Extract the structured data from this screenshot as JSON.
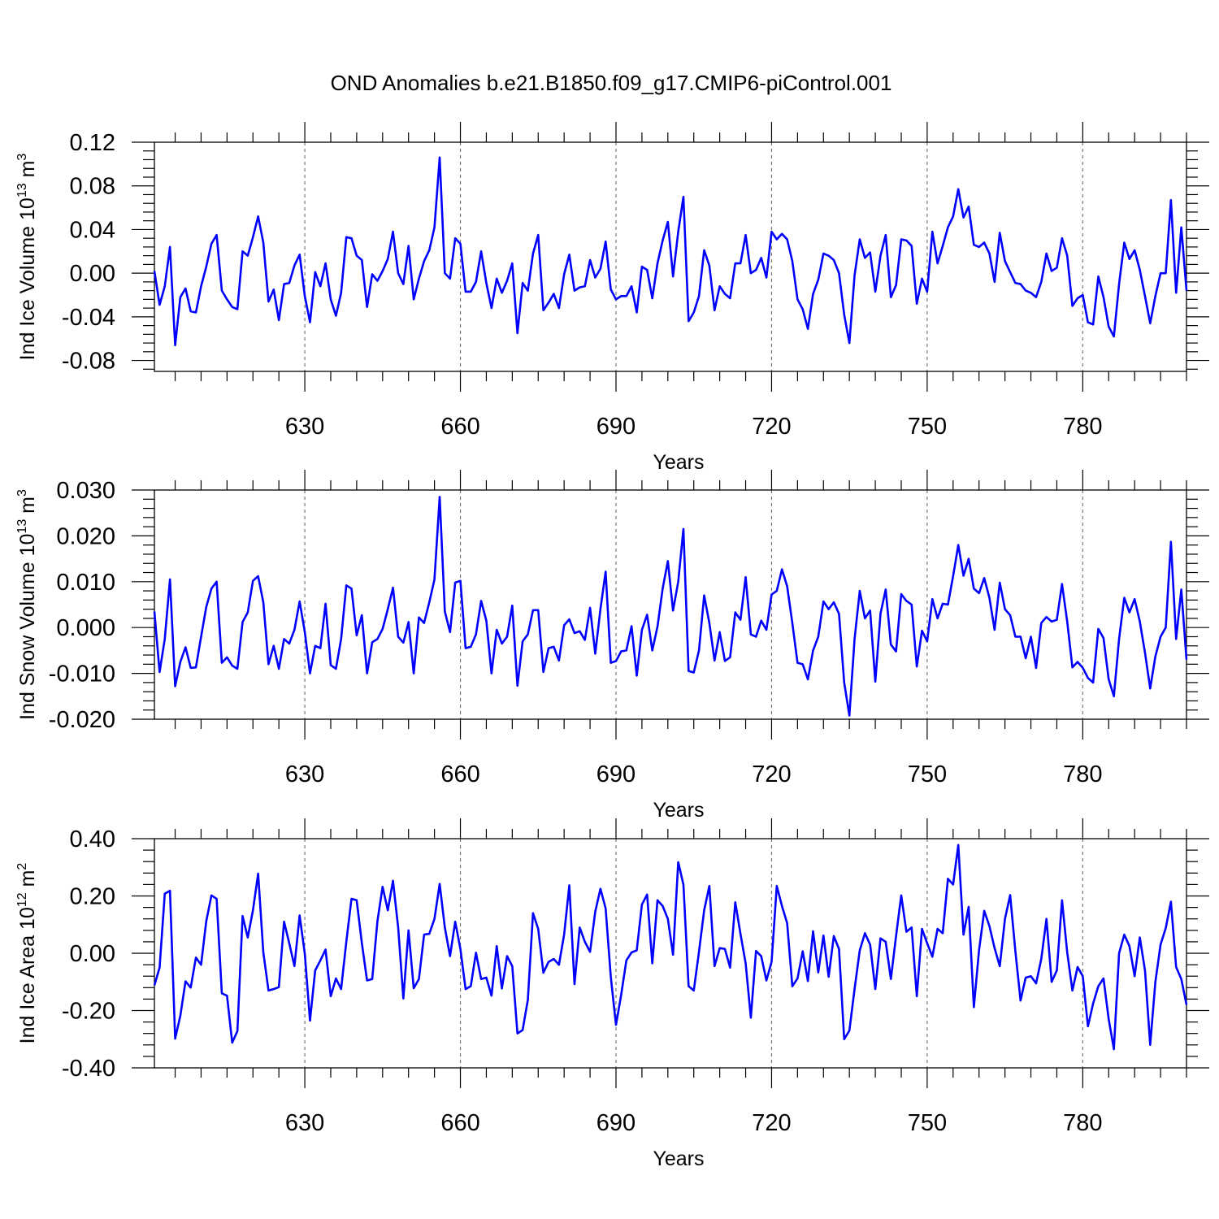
{
  "title": "OND Anomalies b.e21.B1850.f09_g17.CMIP6-piControl.001",
  "chart_data": [
    {
      "type": "line",
      "xlabel": "Years",
      "ylabel_main": "Ind Ice Volume 10",
      "ylabel_exp": "13",
      "ylabel_unit": " m",
      "ylabel_unit_exp": "3",
      "xlim": [
        601,
        800
      ],
      "ylim": [
        -0.09,
        0.12
      ],
      "xticks": [
        630,
        660,
        690,
        720,
        750,
        780
      ],
      "yticks": [
        -0.08,
        -0.04,
        0.0,
        0.04,
        0.08,
        0.12
      ],
      "ytick_labels": [
        "-0.08",
        "-0.04",
        "0.00",
        "0.04",
        "0.08",
        "0.12"
      ],
      "grid": "dashed vertical lines at x ticks",
      "color": "#0000ff",
      "x_start": 601,
      "values": [
        0.002,
        -0.029,
        -0.012,
        0.024,
        -0.066,
        -0.022,
        -0.014,
        -0.035,
        -0.036,
        -0.012,
        0.006,
        0.027,
        0.035,
        -0.016,
        -0.024,
        -0.031,
        -0.033,
        0.02,
        0.016,
        0.033,
        0.052,
        0.028,
        -0.026,
        -0.015,
        -0.043,
        -0.01,
        -0.009,
        0.007,
        0.017,
        -0.021,
        -0.045,
        0.001,
        -0.012,
        0.009,
        -0.024,
        -0.039,
        -0.018,
        0.033,
        0.032,
        0.016,
        0.012,
        -0.031,
        -0.001,
        -0.007,
        0.002,
        0.013,
        0.038,
        0.0,
        -0.01,
        0.025,
        -0.024,
        -0.005,
        0.011,
        0.021,
        0.042,
        0.106,
        0.0,
        -0.005,
        0.032,
        0.027,
        -0.017,
        -0.017,
        -0.008,
        0.02,
        -0.009,
        -0.032,
        -0.005,
        -0.018,
        -0.007,
        0.009,
        -0.055,
        -0.009,
        -0.016,
        0.018,
        0.035,
        -0.034,
        -0.027,
        -0.019,
        -0.032,
        -0.001,
        0.017,
        -0.016,
        -0.013,
        -0.012,
        0.012,
        -0.004,
        0.004,
        0.029,
        -0.015,
        -0.024,
        -0.021,
        -0.021,
        -0.012,
        -0.036,
        0.006,
        0.003,
        -0.023,
        0.009,
        0.03,
        0.047,
        -0.003,
        0.038,
        0.07,
        -0.044,
        -0.036,
        -0.021,
        0.021,
        0.007,
        -0.034,
        -0.012,
        -0.019,
        -0.023,
        0.009,
        0.009,
        0.035,
        0.0,
        0.003,
        0.014,
        -0.004,
        0.038,
        0.031,
        0.036,
        0.031,
        0.011,
        -0.024,
        -0.033,
        -0.051,
        -0.019,
        -0.006,
        0.018,
        0.016,
        0.012,
        0.0,
        -0.038,
        -0.064,
        -0.002,
        0.031,
        0.014,
        0.019,
        -0.017,
        0.016,
        0.035,
        -0.022,
        -0.011,
        0.031,
        0.03,
        0.025,
        -0.028,
        -0.005,
        -0.017,
        0.038,
        0.009,
        0.025,
        0.042,
        0.052,
        0.077,
        0.051,
        0.061,
        0.026,
        0.024,
        0.028,
        0.018,
        -0.008,
        0.037,
        0.011,
        0.001,
        -0.009,
        -0.01,
        -0.016,
        -0.018,
        -0.022,
        -0.008,
        0.018,
        0.002,
        0.005,
        0.032,
        0.016,
        -0.03,
        -0.023,
        -0.02,
        -0.045,
        -0.047,
        -0.003,
        -0.022,
        -0.049,
        -0.058,
        -0.01,
        0.028,
        0.013,
        0.021,
        0.003,
        -0.021,
        -0.046,
        -0.021,
        0.0,
        0.0,
        0.067,
        -0.018,
        0.042,
        -0.016
      ]
    },
    {
      "type": "line",
      "xlabel": "Years",
      "ylabel_main": "Ind Snow Volume 10",
      "ylabel_exp": "13",
      "ylabel_unit": " m",
      "ylabel_unit_exp": "3",
      "xlim": [
        601,
        800
      ],
      "ylim": [
        -0.02,
        0.03
      ],
      "xticks": [
        630,
        660,
        690,
        720,
        750,
        780
      ],
      "yticks": [
        -0.02,
        -0.01,
        0.0,
        0.01,
        0.02,
        0.03
      ],
      "ytick_labels": [
        "-0.020",
        "-0.010",
        "0.000",
        "0.010",
        "0.020",
        "0.030"
      ],
      "grid": "dashed vertical lines at x ticks",
      "color": "#0000ff",
      "x_start": 601,
      "values": [
        0.0035,
        -0.0097,
        -0.0025,
        0.0105,
        -0.0128,
        -0.0075,
        -0.0043,
        -0.0088,
        -0.0087,
        -0.002,
        0.0045,
        0.0085,
        0.01,
        -0.0077,
        -0.0065,
        -0.0083,
        -0.009,
        0.0012,
        0.0033,
        0.0102,
        0.0112,
        0.0055,
        -0.008,
        -0.004,
        -0.009,
        -0.0025,
        -0.0035,
        -0.0005,
        0.0057,
        -0.001,
        -0.01,
        -0.004,
        -0.0045,
        0.0052,
        -0.0082,
        -0.009,
        -0.0025,
        0.0092,
        0.0085,
        -0.0017,
        0.0027,
        -0.01,
        -0.0032,
        -0.0025,
        -0.0003,
        0.004,
        0.0087,
        -0.002,
        -0.0033,
        0.0012,
        -0.01,
        0.0022,
        0.001,
        0.0055,
        0.0105,
        0.0285,
        0.0035,
        -0.001,
        0.0098,
        0.0102,
        -0.0045,
        -0.0042,
        -0.0015,
        0.0058,
        0.0015,
        -0.01,
        -0.0005,
        -0.0035,
        -0.002,
        0.0048,
        -0.0127,
        -0.003,
        -0.0015,
        0.0038,
        0.0038,
        -0.0097,
        -0.0045,
        -0.0042,
        -0.0072,
        0.0005,
        0.0018,
        -0.0012,
        -0.0008,
        -0.0027,
        0.0043,
        -0.0057,
        0.004,
        0.0122,
        -0.0077,
        -0.0073,
        -0.0052,
        -0.005,
        0.0003,
        -0.0105,
        -0.0005,
        0.0028,
        -0.005,
        0.0002,
        0.0085,
        0.0145,
        0.0037,
        0.01,
        0.0215,
        -0.0095,
        -0.0098,
        -0.005,
        0.007,
        0.001,
        -0.0072,
        -0.001,
        -0.0073,
        -0.0065,
        0.0033,
        0.0017,
        0.011,
        -0.0015,
        -0.002,
        0.0015,
        -0.0005,
        0.0072,
        0.008,
        0.0127,
        0.009,
        0.001,
        -0.0077,
        -0.008,
        -0.0113,
        -0.005,
        -0.002,
        0.0057,
        0.004,
        0.0055,
        0.003,
        -0.012,
        -0.0192,
        -0.0025,
        0.008,
        0.002,
        0.0037,
        -0.0118,
        0.003,
        0.0083,
        -0.0037,
        -0.0052,
        0.0073,
        0.0058,
        0.005,
        -0.0085,
        -0.0007,
        -0.003,
        0.0062,
        0.002,
        0.0052,
        0.005,
        0.0112,
        0.018,
        0.0113,
        0.015,
        0.0085,
        0.0075,
        0.0108,
        0.0065,
        -0.0005,
        0.0098,
        0.004,
        0.0027,
        -0.002,
        -0.002,
        -0.0067,
        -0.002,
        -0.0088,
        0.001,
        0.0023,
        0.0013,
        0.0017,
        0.0095,
        0.0013,
        -0.0087,
        -0.0075,
        -0.0088,
        -0.011,
        -0.012,
        -0.0003,
        -0.0023,
        -0.0113,
        -0.015,
        -0.0025,
        0.0065,
        0.0033,
        0.0062,
        0.0013,
        -0.0055,
        -0.0133,
        -0.0063,
        -0.002,
        0.0,
        0.0187,
        -0.0025,
        0.0083,
        -0.007
      ]
    },
    {
      "type": "line",
      "xlabel": "Years",
      "ylabel_main": "Ind Ice Area 10",
      "ylabel_exp": "12",
      "ylabel_unit": " m",
      "ylabel_unit_exp": "2",
      "xlim": [
        601,
        800
      ],
      "ylim": [
        -0.4,
        0.4
      ],
      "xticks": [
        630,
        660,
        690,
        720,
        750,
        780
      ],
      "yticks": [
        -0.4,
        -0.2,
        0.0,
        0.2,
        0.4
      ],
      "ytick_labels": [
        "-0.40",
        "-0.20",
        "0.00",
        "0.20",
        "0.40"
      ],
      "grid": "dashed vertical lines at x ticks",
      "color": "#0000ff",
      "x_start": 601,
      "values": [
        -0.112,
        -0.05,
        0.208,
        0.218,
        -0.298,
        -0.218,
        -0.098,
        -0.12,
        -0.015,
        -0.04,
        0.112,
        0.202,
        0.19,
        -0.14,
        -0.148,
        -0.312,
        -0.272,
        0.13,
        0.055,
        0.15,
        0.278,
        0.003,
        -0.13,
        -0.125,
        -0.118,
        0.11,
        0.035,
        -0.045,
        0.132,
        -0.002,
        -0.235,
        -0.06,
        -0.025,
        0.013,
        -0.15,
        -0.088,
        -0.125,
        0.04,
        0.19,
        0.185,
        0.035,
        -0.095,
        -0.09,
        0.112,
        0.232,
        0.15,
        0.253,
        0.09,
        -0.158,
        0.08,
        -0.122,
        -0.09,
        0.065,
        0.068,
        0.12,
        0.242,
        0.09,
        -0.01,
        0.11,
        0.015,
        -0.125,
        -0.115,
        0.002,
        -0.09,
        -0.085,
        -0.148,
        0.025,
        -0.123,
        -0.01,
        -0.045,
        -0.28,
        -0.268,
        -0.163,
        0.14,
        0.085,
        -0.068,
        -0.03,
        -0.02,
        -0.04,
        0.065,
        0.237,
        -0.108,
        0.09,
        0.04,
        0.005,
        0.145,
        0.225,
        0.157,
        -0.083,
        -0.25,
        -0.145,
        -0.025,
        0.003,
        0.01,
        0.17,
        0.205,
        -0.035,
        0.185,
        0.165,
        0.12,
        -0.005,
        0.318,
        0.24,
        -0.115,
        -0.13,
        0.005,
        0.15,
        0.235,
        -0.045,
        0.018,
        0.015,
        -0.05,
        0.178,
        0.068,
        -0.035,
        -0.225,
        0.008,
        -0.01,
        -0.095,
        -0.03,
        0.235,
        0.165,
        0.105,
        -0.115,
        -0.088,
        0.007,
        -0.097,
        0.077,
        -0.067,
        0.062,
        -0.082,
        0.06,
        0.015,
        -0.3,
        -0.27,
        -0.125,
        0.01,
        0.07,
        0.03,
        -0.125,
        0.052,
        0.04,
        -0.09,
        0.06,
        0.202,
        0.075,
        0.09,
        -0.15,
        0.085,
        0.035,
        -0.012,
        0.085,
        0.07,
        0.26,
        0.24,
        0.378,
        0.065,
        0.162,
        -0.188,
        0.01,
        0.148,
        0.095,
        0.018,
        -0.045,
        0.12,
        0.203,
        0.008,
        -0.165,
        -0.085,
        -0.08,
        -0.105,
        -0.02,
        0.12,
        -0.1,
        -0.06,
        0.185,
        0.003,
        -0.13,
        -0.048,
        -0.08,
        -0.255,
        -0.175,
        -0.115,
        -0.088,
        -0.23,
        -0.335,
        0.0,
        0.065,
        0.025,
        -0.08,
        0.055,
        -0.06,
        -0.32,
        -0.1,
        0.03,
        0.088,
        0.18,
        -0.048,
        -0.09,
        -0.18
      ]
    }
  ]
}
